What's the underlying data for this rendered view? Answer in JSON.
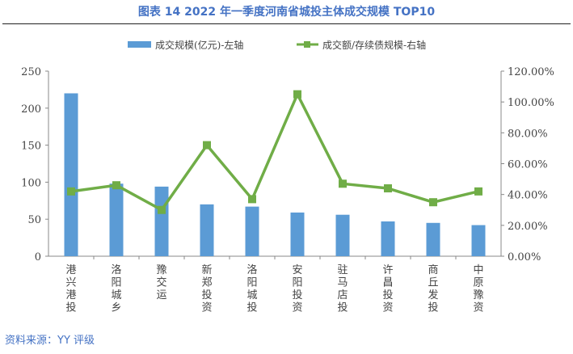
{
  "title": "图表 14 2022 年一季度河南省城投主体成交规模 TOP10",
  "source": "资料来源：YY 评级",
  "chart_data": {
    "type": "bar+line",
    "categories": [
      "港兴港投",
      "洛阳城乡",
      "豫交运",
      "新郑投资",
      "洛阳城投",
      "安阳投资",
      "驻马店投",
      "许昌投资",
      "商丘发投",
      "中原豫资"
    ],
    "series": [
      {
        "name": "成交规模(亿元)-左轴",
        "type": "bar",
        "axis": "left",
        "color": "#5b9bd5",
        "values": [
          220,
          98,
          94,
          70,
          67,
          59,
          56,
          47,
          45,
          42
        ]
      },
      {
        "name": "成交额/存续债规模-右轴",
        "type": "line",
        "axis": "right",
        "color": "#70ad47",
        "values": [
          42,
          46,
          30,
          72,
          37,
          105,
          47,
          44,
          35,
          42
        ]
      }
    ],
    "left_axis": {
      "range": [
        0,
        250
      ],
      "ticks": [
        "0",
        "50",
        "100",
        "150",
        "200",
        "250"
      ]
    },
    "right_axis": {
      "range": [
        0,
        120
      ],
      "ticks": [
        "0.00%",
        "20.00%",
        "40.00%",
        "60.00%",
        "80.00%",
        "100.00%",
        "120.00%"
      ]
    },
    "grid": false,
    "legend": "top"
  }
}
